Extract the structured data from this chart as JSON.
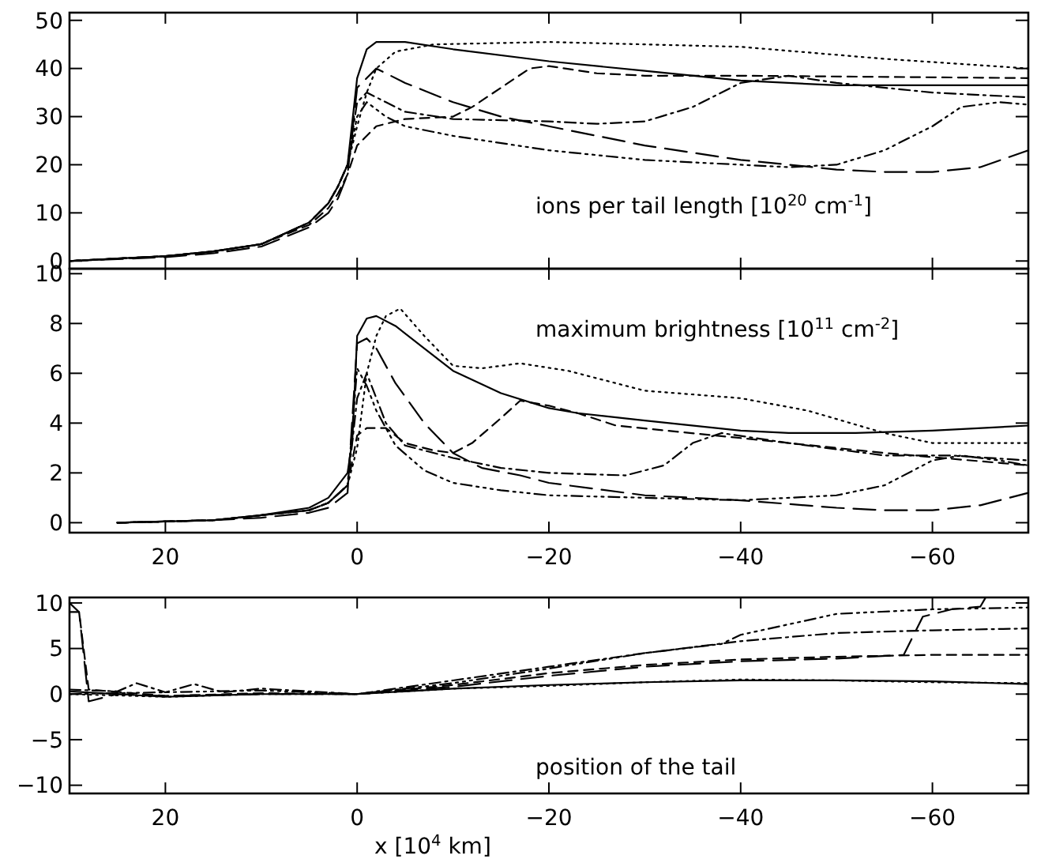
{
  "chart_data": [
    {
      "type": "line",
      "xlim": [
        30,
        -70
      ],
      "ylim": [
        -1.6,
        51.6
      ],
      "xticks": [
        20,
        0,
        -20,
        -40,
        -60
      ],
      "yticks": [
        0,
        10,
        20,
        30,
        40,
        50
      ],
      "tick_labels": "y",
      "annotations": [
        "ions per tail length [10$^{20}$ cm$^{-1}$]"
      ],
      "series": [
        {
          "color": "#000000",
          "line_style": "solid",
          "x": [
            30,
            25,
            20,
            15,
            10,
            5,
            3,
            2,
            1,
            0,
            -1,
            -2,
            -5,
            -10,
            -20,
            -30,
            -40,
            -50,
            -70
          ],
          "values": [
            0,
            0.5,
            1,
            2,
            3.5,
            8,
            12,
            15.5,
            20,
            38,
            44,
            45.5,
            45.5,
            44,
            41.5,
            39.5,
            37.5,
            36.5,
            36.5
          ]
        },
        {
          "color": "#000000",
          "line_style": "dotted",
          "x": [
            30,
            25,
            20,
            15,
            10,
            5,
            3,
            2,
            1,
            0,
            -1,
            -2,
            -4,
            -8,
            -20,
            -40,
            -55,
            -70
          ],
          "values": [
            0,
            0.5,
            1,
            2,
            3.5,
            8,
            12,
            15.5,
            20,
            28,
            35,
            40,
            43.5,
            45,
            45.5,
            44.5,
            42,
            40
          ]
        },
        {
          "color": "#000000",
          "line_style": "dashed",
          "x": [
            30,
            25,
            20,
            15,
            10,
            5,
            3,
            2,
            1,
            0,
            -2,
            -5,
            -10,
            -12,
            -15,
            -18,
            -20,
            -25,
            -30,
            -40,
            -70
          ],
          "values": [
            0,
            0.5,
            1,
            2,
            3.5,
            7.5,
            11,
            14,
            18,
            24,
            28,
            29.5,
            30,
            32,
            36,
            40,
            40.5,
            39,
            38.5,
            38.5,
            38
          ]
        },
        {
          "color": "#000000",
          "line_style": "dashdot",
          "x": [
            30,
            25,
            20,
            15,
            10,
            5,
            3,
            2,
            1,
            0,
            -1,
            -3,
            -5,
            -10,
            -20,
            -25,
            -30,
            -35,
            -40,
            -45,
            -50,
            -60,
            -70
          ],
          "values": [
            0,
            0.5,
            1,
            2,
            3.5,
            8,
            12,
            15.5,
            20,
            33,
            35,
            33,
            31,
            29.5,
            29,
            28.5,
            29,
            32,
            37,
            38.5,
            37,
            35,
            34
          ]
        },
        {
          "color": "#000000",
          "line_style": "dashdotdotdot",
          "x": [
            30,
            25,
            20,
            15,
            10,
            5,
            3,
            2,
            1,
            0,
            -1,
            -3,
            -5,
            -10,
            -20,
            -30,
            -40,
            -45,
            -50,
            -55,
            -60,
            -63,
            -67,
            -70
          ],
          "values": [
            0,
            0.5,
            1,
            2,
            3.5,
            8,
            12,
            15.5,
            20,
            30,
            33,
            30,
            28,
            26,
            23,
            21,
            20,
            19.5,
            20,
            23,
            28,
            32,
            33,
            32.5
          ]
        },
        {
          "color": "#000000",
          "line_style": "longdash",
          "x": [
            30,
            25,
            20,
            15,
            10,
            5,
            3,
            2,
            1,
            0,
            -2,
            -5,
            -10,
            -15,
            -20,
            -30,
            -40,
            -50,
            -55,
            -60,
            -65,
            -70
          ],
          "values": [
            0,
            0.4,
            0.8,
            1.6,
            3,
            7,
            10,
            13,
            18,
            36,
            40,
            37,
            33,
            30,
            28,
            24,
            21,
            19,
            18.5,
            18.5,
            19.5,
            23
          ]
        }
      ]
    },
    {
      "type": "line",
      "xlim": [
        30,
        -70
      ],
      "ylim": [
        -0.4,
        10.2
      ],
      "xticks": [
        20,
        0,
        -20,
        -40,
        -60
      ],
      "yticks": [
        0,
        2,
        4,
        6,
        8,
        10
      ],
      "annotations": [
        "maximum brightness [10$^{11}$ cm$^{-2}$]"
      ],
      "series": [
        {
          "color": "#000000",
          "line_style": "solid",
          "x": [
            25,
            15,
            10,
            5,
            3,
            1,
            0.5,
            0,
            -1,
            -2,
            -4,
            -7,
            -10,
            -15,
            -20,
            -23,
            -30,
            -40,
            -45,
            -52,
            -60,
            -70
          ],
          "values": [
            0,
            0.1,
            0.3,
            0.6,
            1,
            2,
            3.3,
            7.5,
            8.2,
            8.3,
            7.9,
            7,
            6.1,
            5.2,
            4.6,
            4.4,
            4.1,
            3.7,
            3.6,
            3.6,
            3.7,
            3.9
          ]
        },
        {
          "color": "#000000",
          "line_style": "dotted",
          "x": [
            25,
            15,
            10,
            5,
            3,
            1,
            0,
            -1,
            -2,
            -3,
            -4.5,
            -7,
            -10,
            -13,
            -17,
            -22,
            -30,
            -40,
            -47,
            -55,
            -60,
            -70
          ],
          "values": [
            0,
            0.1,
            0.3,
            0.5,
            0.8,
            1.5,
            3,
            6,
            7.5,
            8.3,
            8.6,
            7.5,
            6.3,
            6.2,
            6.4,
            6.1,
            5.3,
            5,
            4.5,
            3.6,
            3.2,
            3.2
          ]
        },
        {
          "color": "#000000",
          "line_style": "dashed",
          "x": [
            25,
            15,
            10,
            5,
            3,
            1,
            0,
            -1,
            -3,
            -5,
            -8,
            -10,
            -12,
            -15,
            -17,
            -20,
            -23,
            -27,
            -40,
            -55,
            -70
          ],
          "values": [
            0,
            0.1,
            0.3,
            0.5,
            0.8,
            1.5,
            3.5,
            3.8,
            3.8,
            3.2,
            2.9,
            2.8,
            3.2,
            4.2,
            4.9,
            4.7,
            4.4,
            3.9,
            3.4,
            2.8,
            2.3
          ]
        },
        {
          "color": "#000000",
          "line_style": "dashdot",
          "x": [
            25,
            15,
            10,
            5,
            3,
            1,
            0,
            -1,
            -3,
            -5,
            -10,
            -15,
            -20,
            -28,
            -32,
            -35,
            -38,
            -45,
            -55,
            -62,
            -70
          ],
          "values": [
            0,
            0.1,
            0.3,
            0.5,
            0.8,
            1.5,
            5,
            6,
            4,
            3.1,
            2.6,
            2.2,
            2,
            1.9,
            2.3,
            3.2,
            3.6,
            3.2,
            2.7,
            2.7,
            2.5
          ]
        },
        {
          "color": "#000000",
          "line_style": "dashdotdotdot",
          "x": [
            25,
            15,
            10,
            5,
            3,
            1,
            0,
            -1,
            -2,
            -4,
            -7,
            -10,
            -15,
            -20,
            -30,
            -40,
            -50,
            -55,
            -60,
            -63,
            -67,
            -70
          ],
          "values": [
            0,
            0.1,
            0.3,
            0.5,
            0.8,
            1.5,
            6.2,
            5.5,
            4.5,
            3.1,
            2.1,
            1.6,
            1.3,
            1.1,
            1,
            0.9,
            1.1,
            1.5,
            2.5,
            2.7,
            2.5,
            2.3
          ]
        },
        {
          "color": "#000000",
          "line_style": "longdash",
          "x": [
            25,
            15,
            10,
            5,
            3,
            1,
            0,
            -1,
            -2,
            -4,
            -7,
            -10,
            -13,
            -17,
            -20,
            -30,
            -40,
            -50,
            -55,
            -60,
            -65,
            -70
          ],
          "values": [
            0,
            0.1,
            0.2,
            0.4,
            0.6,
            1.2,
            7.2,
            7.4,
            7,
            5.6,
            4,
            2.8,
            2.2,
            1.9,
            1.6,
            1.1,
            0.9,
            0.6,
            0.5,
            0.5,
            0.7,
            1.2
          ]
        }
      ]
    },
    {
      "type": "line",
      "xlim": [
        30,
        -70
      ],
      "ylim": [
        -10.9,
        10.6
      ],
      "xticks": [
        20,
        0,
        -20,
        -40,
        -60
      ],
      "yticks": [
        -10,
        -5,
        0,
        5,
        10
      ],
      "xlabel": "x [10$^{4}$ km]",
      "annotations": [
        "position of the tail"
      ],
      "series": [
        {
          "color": "#000000",
          "line_style": "solid",
          "x": [
            30,
            25,
            20,
            10,
            0,
            -10,
            -20,
            -30,
            -40,
            -50,
            -60,
            -70
          ],
          "values": [
            0.3,
            0,
            -0.3,
            0,
            0,
            0.6,
            1,
            1.3,
            1.5,
            1.5,
            1.4,
            1.1
          ]
        },
        {
          "color": "#000000",
          "line_style": "dotted",
          "x": [
            30,
            20,
            10,
            0,
            -10,
            -20,
            -30,
            -40,
            -50,
            -60,
            -70
          ],
          "values": [
            0,
            -0.3,
            0,
            0,
            0.6,
            0.9,
            1.3,
            1.6,
            1.5,
            1.3,
            1.2
          ]
        },
        {
          "color": "#000000",
          "line_style": "dashed",
          "x": [
            30,
            29,
            28,
            20,
            10,
            0,
            -10,
            -20,
            -30,
            -40,
            -50,
            -60,
            -70
          ],
          "values": [
            9,
            9,
            0.5,
            -0.2,
            0.1,
            0,
            1,
            2.3,
            3.2,
            3.8,
            4.1,
            4.3,
            4.3
          ]
        },
        {
          "color": "#000000",
          "line_style": "dashdot",
          "x": [
            30,
            25,
            23,
            20,
            17,
            14,
            10,
            5,
            0,
            -10,
            -20,
            -30,
            -40,
            -50,
            -60,
            -70
          ],
          "values": [
            0.5,
            0.3,
            1.2,
            0.2,
            1.1,
            0.2,
            0.6,
            0.3,
            0,
            1.5,
            3,
            4.5,
            5.8,
            6.7,
            7,
            7.2
          ]
        },
        {
          "color": "#000000",
          "line_style": "dashdotdotdot",
          "x": [
            30,
            10,
            0,
            -10,
            -20,
            -30,
            -38,
            -40,
            -50,
            -60,
            -70
          ],
          "values": [
            0,
            0.4,
            0,
            1.2,
            2.8,
            4.5,
            5.5,
            6.5,
            8.8,
            9.3,
            9.5
          ]
        },
        {
          "color": "#000000",
          "line_style": "longdash",
          "x": [
            30,
            29,
            28,
            25,
            20,
            10,
            0,
            -10,
            -20,
            -30,
            -40,
            -50,
            -57,
            -59,
            -62,
            -65,
            -65.5
          ],
          "values": [
            10,
            9,
            -0.8,
            0,
            -0.2,
            0,
            0,
            0.8,
            2,
            3,
            3.6,
            3.9,
            4.3,
            8.5,
            9.3,
            9.6,
            10.5
          ]
        }
      ]
    }
  ]
}
